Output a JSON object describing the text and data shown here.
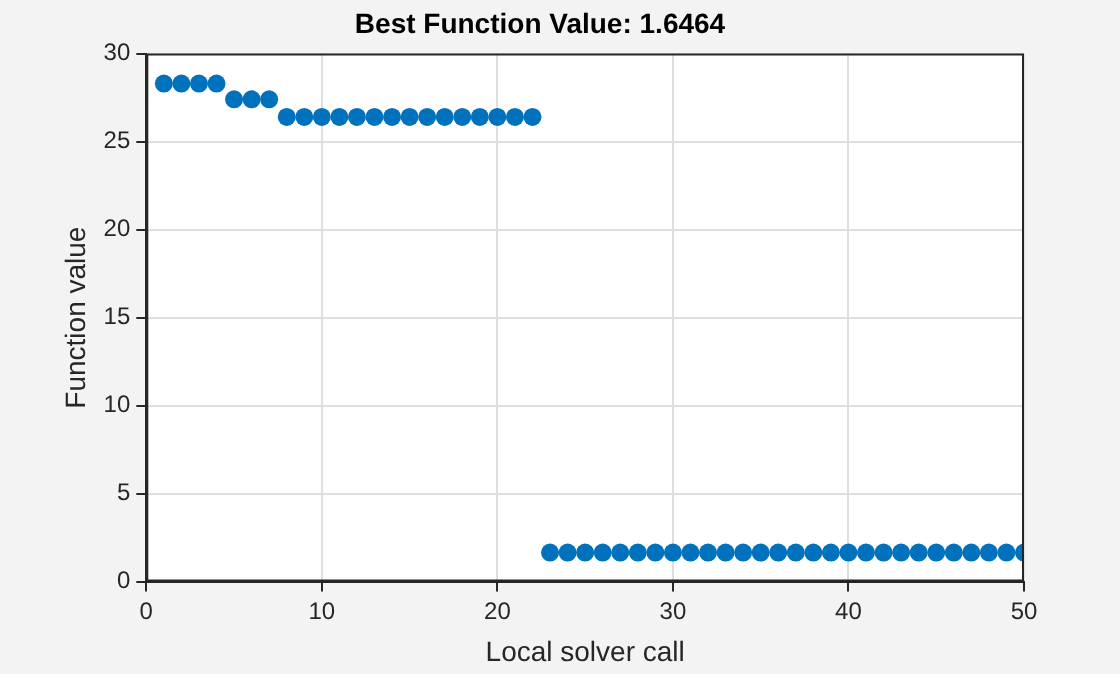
{
  "chart_data": {
    "type": "scatter",
    "title": "Best Function Value: 1.6464",
    "xlabel": "Local solver call",
    "ylabel": "Function value",
    "x": [
      1,
      2,
      3,
      4,
      5,
      6,
      7,
      8,
      9,
      10,
      11,
      12,
      13,
      14,
      15,
      16,
      17,
      18,
      19,
      20,
      21,
      22,
      23,
      24,
      25,
      26,
      27,
      28,
      29,
      30,
      31,
      32,
      33,
      34,
      35,
      36,
      37,
      38,
      39,
      40,
      41,
      42,
      43,
      44,
      45,
      46,
      47,
      48,
      49,
      50
    ],
    "values": [
      28.3,
      28.3,
      28.3,
      28.3,
      27.4,
      27.4,
      27.4,
      26.4,
      26.4,
      26.4,
      26.4,
      26.4,
      26.4,
      26.4,
      26.4,
      26.4,
      26.4,
      26.4,
      26.4,
      26.4,
      26.4,
      26.4,
      1.6464,
      1.6464,
      1.6464,
      1.6464,
      1.6464,
      1.6464,
      1.6464,
      1.6464,
      1.6464,
      1.6464,
      1.6464,
      1.6464,
      1.6464,
      1.6464,
      1.6464,
      1.6464,
      1.6464,
      1.6464,
      1.6464,
      1.6464,
      1.6464,
      1.6464,
      1.6464,
      1.6464,
      1.6464,
      1.6464,
      1.6464,
      1.6464
    ],
    "color": "#0072bd",
    "marker": "circle",
    "xlim": [
      0,
      50
    ],
    "xticks": [
      0,
      10,
      20,
      30,
      40,
      50
    ],
    "ylim": [
      0,
      30
    ],
    "yticks": [
      0,
      5,
      10,
      15,
      20,
      25,
      30
    ],
    "grid": true,
    "legend": false
  }
}
